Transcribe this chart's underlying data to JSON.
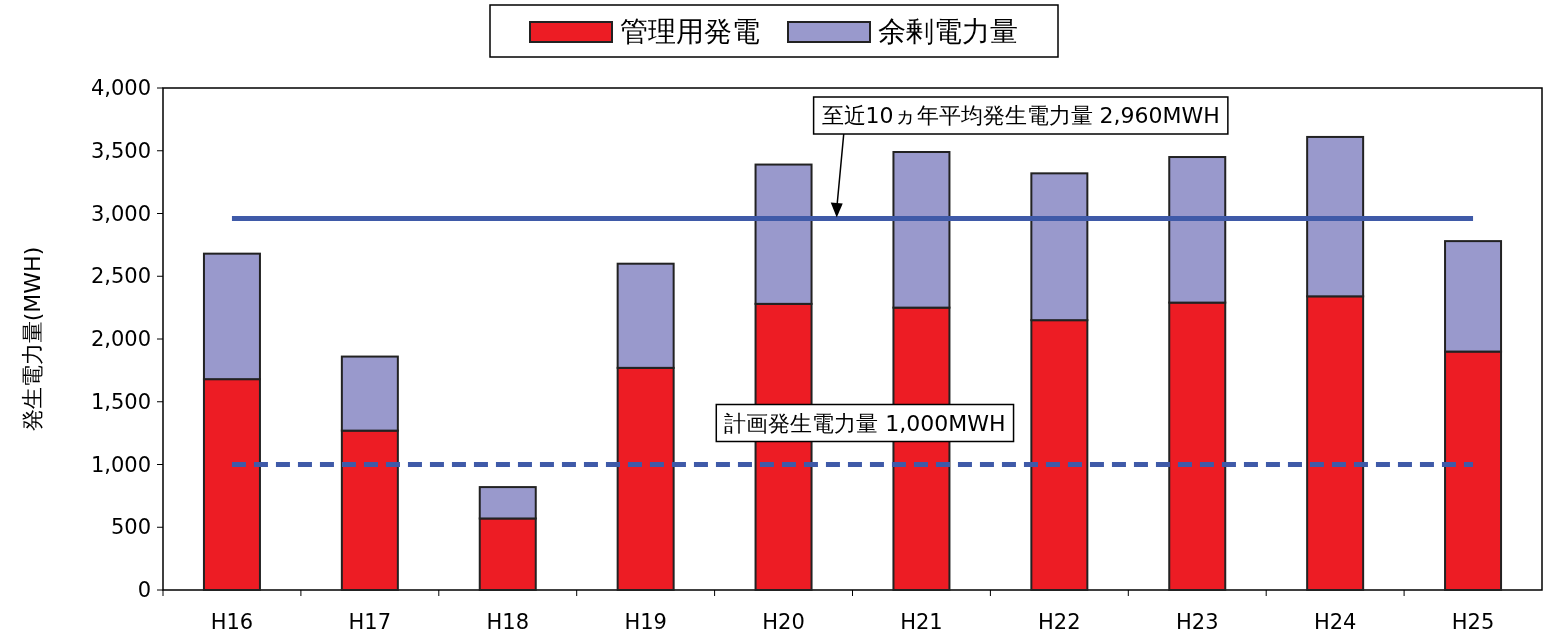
{
  "chart_data": {
    "type": "bar",
    "stacked": true,
    "categories": [
      "H16",
      "H17",
      "H18",
      "H19",
      "H20",
      "H21",
      "H22",
      "H23",
      "H24",
      "H25"
    ],
    "series": [
      {
        "name": "管理用発電",
        "color": "#ed1c24",
        "values": [
          1680,
          1270,
          570,
          1770,
          2280,
          2250,
          2150,
          2290,
          2340,
          1900
        ]
      },
      {
        "name": "余剰電力量",
        "color": "#9999cc",
        "values": [
          1000,
          590,
          250,
          830,
          1110,
          1240,
          1170,
          1160,
          1270,
          880
        ]
      }
    ],
    "ylabel": "発生電力量(MWH)",
    "ylim": [
      0,
      4000
    ],
    "yticks": [
      0,
      500,
      {
        "value": 1000,
        "label": "1,000"
      },
      {
        "value": 1500,
        "label": "1,500"
      },
      {
        "value": 2000,
        "label": "2,000"
      },
      {
        "value": 2500,
        "label": "2,500"
      },
      {
        "value": 3000,
        "label": "3,000"
      },
      {
        "value": 3500,
        "label": "3,500"
      },
      {
        "value": 4000,
        "label": "4,000"
      }
    ],
    "legend": "top",
    "grid": false,
    "ref_lines": [
      {
        "axis": "y",
        "value": 2960,
        "label": "至近10ヵ年平均発生電力量  2,960MWH",
        "color": "#3f5aa8",
        "line_style": "solid"
      },
      {
        "axis": "y",
        "value": 1000,
        "label": "計画発生電力量 1,000MWH",
        "color": "#3f5aa8",
        "line_style": "dashed"
      }
    ]
  }
}
